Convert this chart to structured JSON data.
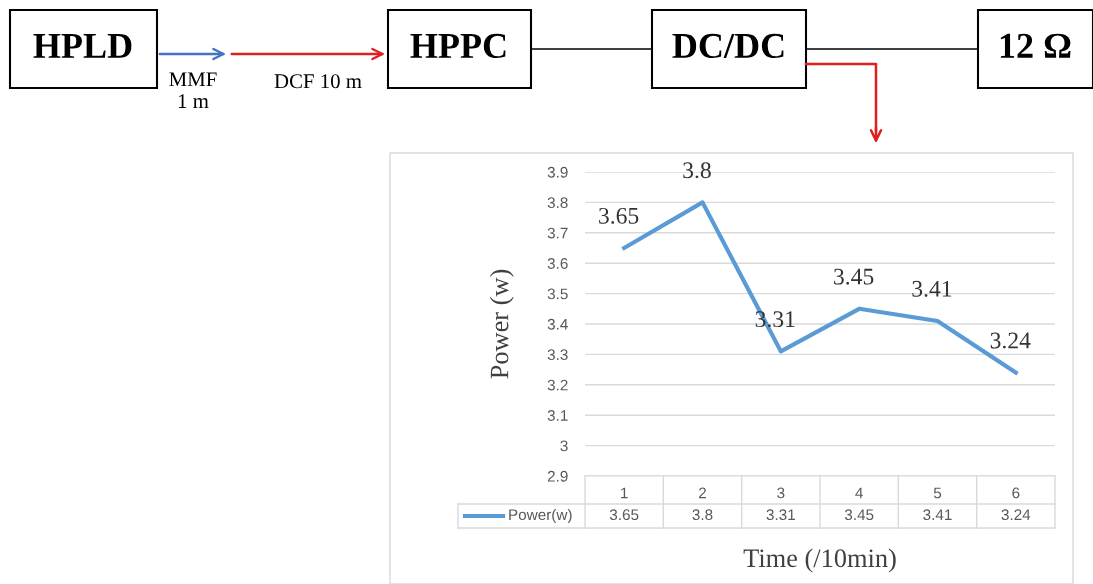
{
  "chart_data": {
    "type": "line",
    "xlabel": "Time (/10min)",
    "ylabel": "Power (w)",
    "categories": [
      "1",
      "2",
      "3",
      "4",
      "5",
      "6"
    ],
    "series": [
      {
        "name": "Power(w)",
        "color": "#5b9bd5",
        "values": [
          3.65,
          3.8,
          3.31,
          3.45,
          3.41,
          3.24
        ],
        "value_labels": [
          "3.65",
          "3.8",
          "3.31",
          "3.45",
          "3.41",
          "3.24"
        ]
      }
    ],
    "ylim": [
      2.9,
      3.9
    ],
    "yticks": [
      2.9,
      3,
      3.1,
      3.2,
      3.3,
      3.4,
      3.5,
      3.6,
      3.7,
      3.8,
      3.9
    ],
    "grid": "y",
    "legend": "bottom",
    "marker": "none",
    "line_style": "solid",
    "annotations": [
      "HPLD",
      "MMF\n1 m",
      "DCF 10 m",
      "HPPC",
      "DC/DC",
      "12 Ω",
      "3.65",
      "3.8",
      "3.31",
      "3.45",
      "3.41",
      "3.24"
    ]
  }
}
